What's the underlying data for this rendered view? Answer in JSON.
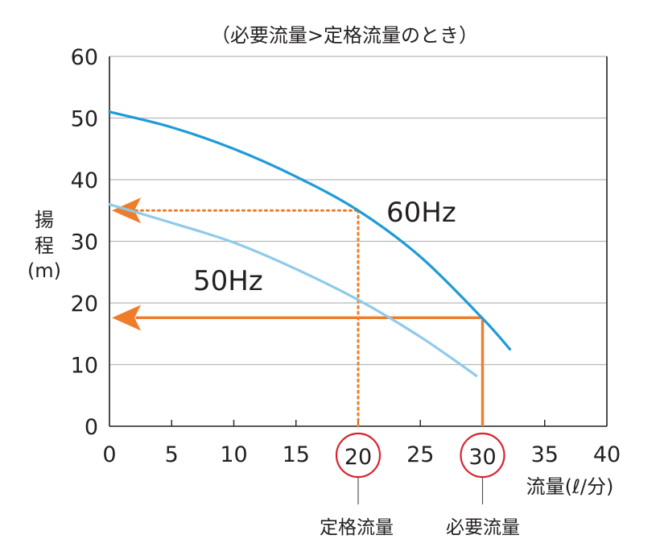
{
  "chart_data": {
    "type": "line",
    "title": "（必要流量>定格流量のとき）",
    "xlabel": "流量(ℓ/分)",
    "ylabel": [
      "揚",
      "程",
      "(m)"
    ],
    "xlim": [
      0,
      40
    ],
    "ylim": [
      0,
      60
    ],
    "xticks": [
      0,
      5,
      10,
      15,
      20,
      25,
      30,
      35,
      40
    ],
    "yticks": [
      0,
      10,
      20,
      30,
      40,
      50,
      60
    ],
    "grid": "horizontal",
    "series": [
      {
        "name": "60Hz",
        "color": "#1e9cd7",
        "x": [
          0,
          5,
          10,
          15,
          20,
          25,
          30,
          32.2
        ],
        "y": [
          51,
          48.5,
          45,
          40.5,
          35,
          27.5,
          17.5,
          12.5
        ]
      },
      {
        "name": "50Hz",
        "color": "#8fcbe9",
        "x": [
          0,
          5,
          10,
          15,
          20,
          25,
          29.5
        ],
        "y": [
          36,
          33,
          29.8,
          25.5,
          20.5,
          14.5,
          8.2
        ]
      }
    ],
    "annotations": {
      "rated": {
        "x": 20,
        "y": 35,
        "label": "定格流量",
        "circle_text": "20",
        "color": "#ee7d2a",
        "style": "dotted"
      },
      "required": {
        "x": 30,
        "y": 17.6,
        "label": "必要流量",
        "circle_text": "30",
        "color": "#ee7d2a",
        "style": "solid"
      },
      "circle_color": "#d9232e",
      "grid_color": "#b8b8b8",
      "axis_color": "#231f20"
    }
  }
}
